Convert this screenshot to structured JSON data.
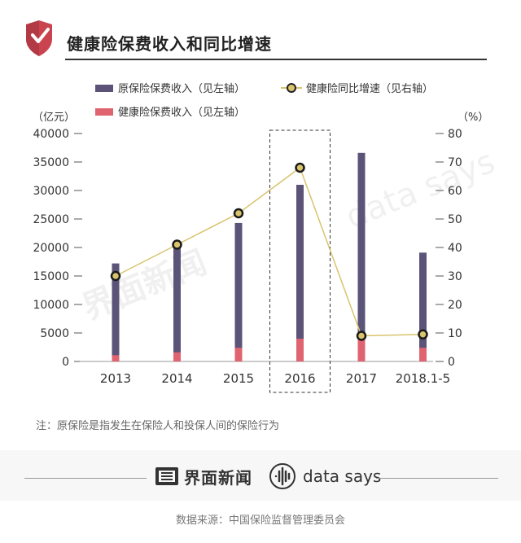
{
  "header": {
    "title": "健康险保费收入和同比增速"
  },
  "chart_data": {
    "type": "bar",
    "categories": [
      "2013",
      "2014",
      "2015",
      "2016",
      "2017",
      "2018.1-5"
    ],
    "series": [
      {
        "name": "原保险保费收入（见左轴）",
        "type": "bar",
        "axis": "left",
        "color": "#5b5478",
        "values": [
          17200,
          20200,
          24300,
          31000,
          36600,
          19100
        ]
      },
      {
        "name": "健康险保费收入（见左轴）",
        "type": "bar",
        "axis": "left",
        "color": "#e06470",
        "values": [
          1100,
          1600,
          2400,
          4000,
          4400,
          2400
        ]
      },
      {
        "name": "健康险同比增速（见右轴）",
        "type": "line",
        "axis": "right",
        "color": "#d9c36d",
        "values": [
          30,
          41,
          52,
          68,
          9,
          9.5
        ]
      }
    ],
    "left_axis": {
      "unit": "（亿元）",
      "min": 0,
      "max": 40000,
      "step": 5000,
      "ticks": [
        "0",
        "5000",
        "10000",
        "15000",
        "20000",
        "25000",
        "30000",
        "35000",
        "40000"
      ]
    },
    "right_axis": {
      "unit": "（%）",
      "min": 0,
      "max": 80,
      "step": 10,
      "ticks": [
        "0",
        "10",
        "20",
        "30",
        "40",
        "50",
        "60",
        "70",
        "80"
      ]
    },
    "highlight_category": "2016",
    "legend_position": "top-left"
  },
  "note": "注：原保险是指发生在保险人和投保人间的保险行为",
  "brands": {
    "jiemian": "界面新闻",
    "datasays": "data says"
  },
  "watermarks": {
    "jiemian": "界面新闻",
    "datasays": "data says"
  },
  "source": "数据来源：中国保险监督管理委员会"
}
